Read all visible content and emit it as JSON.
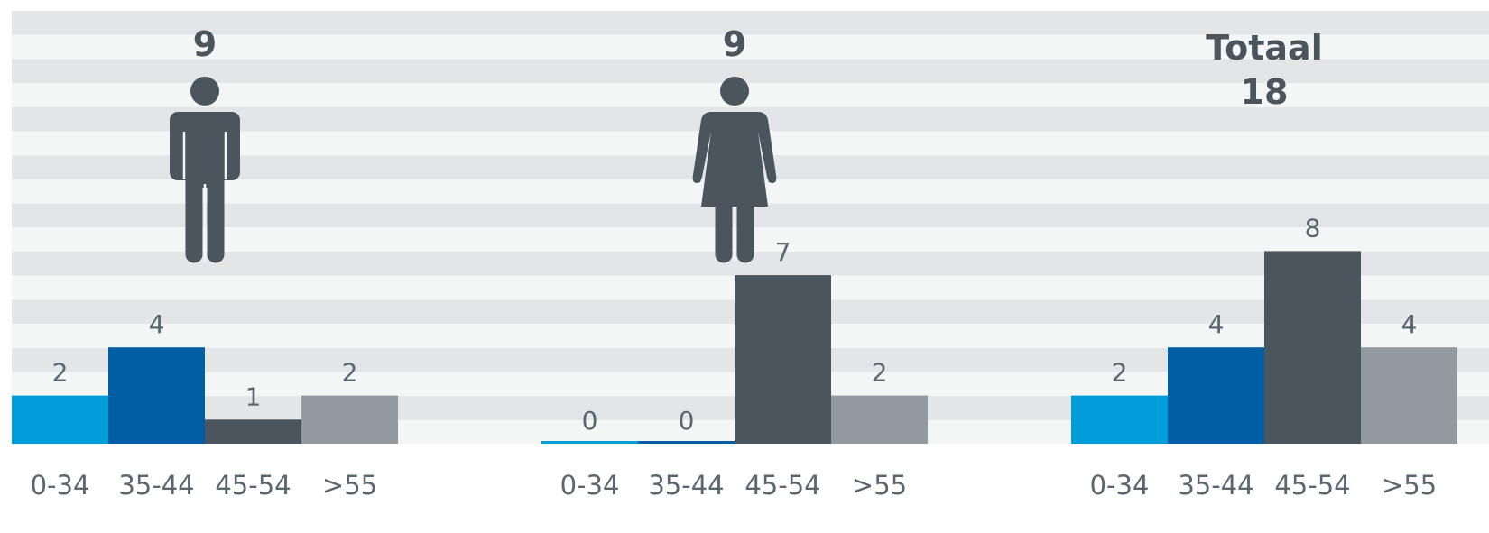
{
  "chart_data": [
    {
      "type": "bar",
      "headline": "9",
      "icon": "male-person-icon",
      "categories": [
        "0-34",
        "35-44",
        "45-54",
        ">55"
      ],
      "values": [
        2,
        4,
        1,
        2
      ],
      "colors": [
        "#009ddb",
        "#005ea5",
        "#4a555e",
        "#939a9f"
      ],
      "ylim": [
        0,
        18
      ]
    },
    {
      "type": "bar",
      "headline": "9",
      "icon": "female-person-icon",
      "categories": [
        "0-34",
        "35-44",
        "45-54",
        ">55"
      ],
      "values": [
        0,
        0,
        7,
        2
      ],
      "colors": [
        "#009ddb",
        "#005ea5",
        "#4a555e",
        "#939a9f"
      ],
      "ylim": [
        0,
        18
      ]
    },
    {
      "type": "bar",
      "title": "Totaal",
      "headline": "18",
      "categories": [
        "0-34",
        "35-44",
        "45-54",
        ">55"
      ],
      "values": [
        2,
        4,
        8,
        4
      ],
      "colors": [
        "#009ddb",
        "#005ea5",
        "#4a555e",
        "#939a9f"
      ],
      "ylim": [
        0,
        18
      ]
    }
  ],
  "colors": {
    "stripe_dark": "#e4e5e6",
    "stripe_light": "#f4f5f5",
    "icon": "#4a555e",
    "text": "#5b6670",
    "headline": "#4a555e"
  }
}
